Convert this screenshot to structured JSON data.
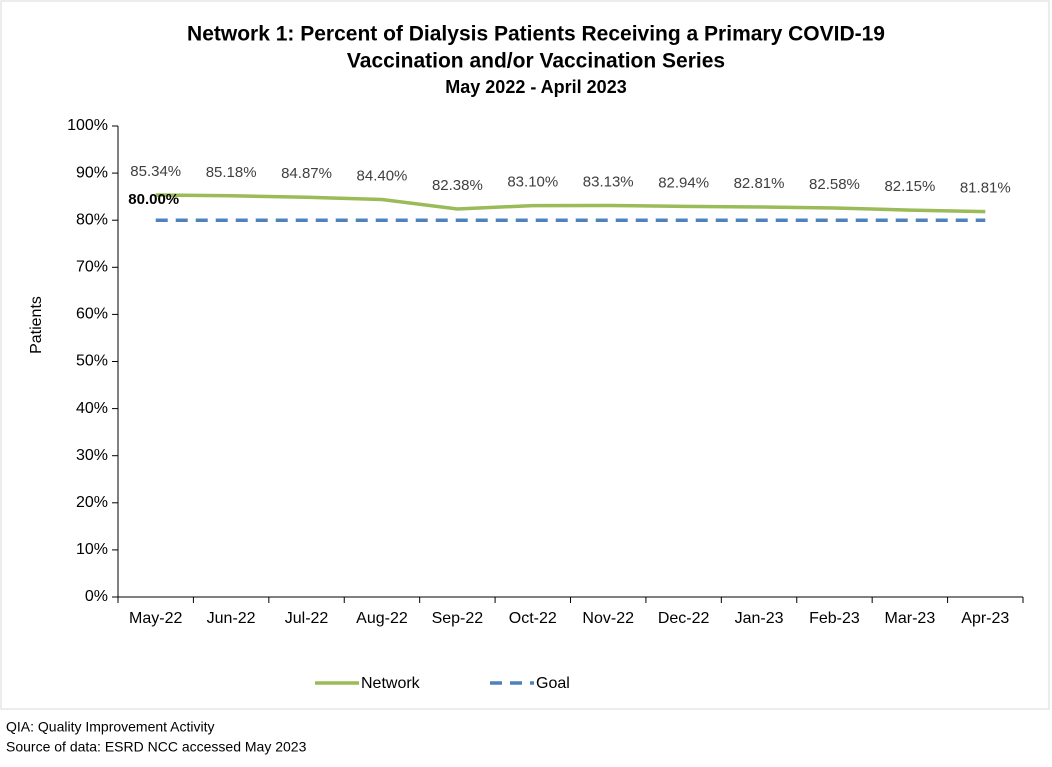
{
  "chart_data": {
    "type": "line",
    "title": [
      "Network 1: Percent of Dialysis Patients Receiving a Primary COVID-19",
      "Vaccination and/or Vaccination Series"
    ],
    "subtitle": "May 2022 - April 2023",
    "y_label": "Patients",
    "categories": [
      "May-22",
      "Jun-22",
      "Jul-22",
      "Aug-22",
      "Sep-22",
      "Oct-22",
      "Nov-22",
      "Dec-22",
      "Jan-23",
      "Feb-23",
      "Mar-23",
      "Apr-23"
    ],
    "series": [
      {
        "name": "Network",
        "color": "#9bbb59",
        "dashed": false,
        "values": [
          85.34,
          85.18,
          84.87,
          84.4,
          82.38,
          83.1,
          83.13,
          82.94,
          82.81,
          82.58,
          82.15,
          81.81
        ],
        "value_labels": [
          "85.34%",
          "85.18%",
          "84.87%",
          "84.40%",
          "82.38%",
          "83.10%",
          "83.13%",
          "82.94%",
          "82.81%",
          "82.58%",
          "82.15%",
          "81.81%"
        ]
      },
      {
        "name": "Goal",
        "color": "#4f81bd",
        "dashed": true,
        "values": [
          80,
          80,
          80,
          80,
          80,
          80,
          80,
          80,
          80,
          80,
          80,
          80
        ],
        "value_labels": [
          "80.00%",
          null,
          null,
          null,
          null,
          null,
          null,
          null,
          null,
          null,
          null,
          null
        ]
      }
    ],
    "ylim": [
      0,
      100
    ],
    "yticks": [
      {
        "value": 0,
        "label": "0%"
      },
      {
        "value": 10,
        "label": "10%"
      },
      {
        "value": 20,
        "label": "20%"
      },
      {
        "value": 30,
        "label": "30%"
      },
      {
        "value": 40,
        "label": "40%"
      },
      {
        "value": 50,
        "label": "50%"
      },
      {
        "value": 60,
        "label": "60%"
      },
      {
        "value": 70,
        "label": "70%"
      },
      {
        "value": 80,
        "label": "80%"
      },
      {
        "value": 90,
        "label": "90%"
      },
      {
        "value": 100,
        "label": "100%"
      }
    ],
    "grid": false,
    "legend": "bottom",
    "notes": [
      "QIA:  Quality Improvement Activity",
      "Source of data:  ESRD NCC accessed May 2023"
    ]
  }
}
